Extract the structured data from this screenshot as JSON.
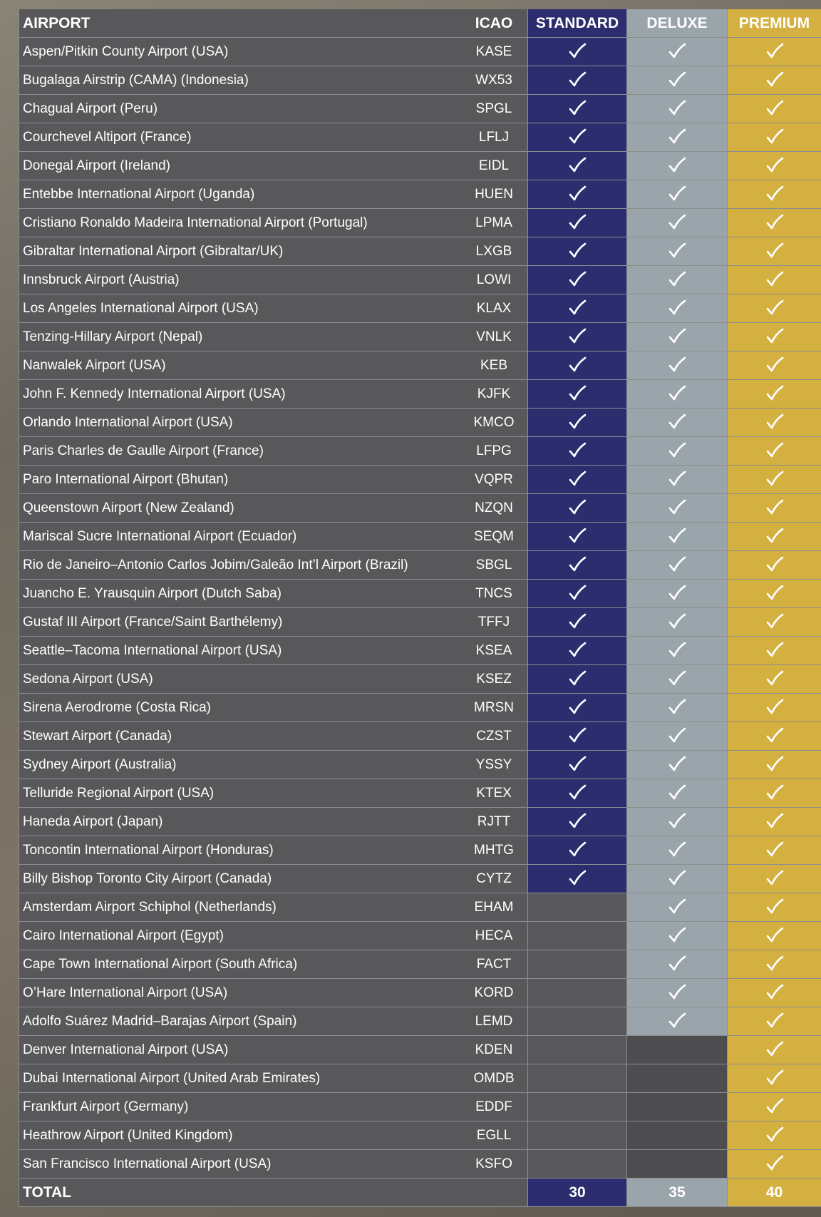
{
  "table": {
    "header": [
      "AIRPORT",
      "ICAO",
      "STANDARD",
      "DELUXE",
      "PREMIUM"
    ],
    "rows": [
      [
        "Aspen/Pitkin County Airport (USA)",
        "KASE",
        [
          true,
          true,
          true
        ]
      ],
      [
        "Bugalaga Airstrip (CAMA) (Indonesia)",
        "WX53",
        [
          true,
          true,
          true
        ]
      ],
      [
        "Chagual Airport (Peru)",
        "SPGL",
        [
          true,
          true,
          true
        ]
      ],
      [
        "Courchevel Altiport (France)",
        "LFLJ",
        [
          true,
          true,
          true
        ]
      ],
      [
        "Donegal Airport (Ireland)",
        "EIDL",
        [
          true,
          true,
          true
        ]
      ],
      [
        "Entebbe International Airport (Uganda)",
        "HUEN",
        [
          true,
          true,
          true
        ]
      ],
      [
        "Cristiano Ronaldo Madeira International Airport (Portugal)",
        "LPMA",
        [
          true,
          true,
          true
        ]
      ],
      [
        "Gibraltar International Airport (Gibraltar/UK)",
        "LXGB",
        [
          true,
          true,
          true
        ]
      ],
      [
        "Innsbruck Airport (Austria)",
        "LOWI",
        [
          true,
          true,
          true
        ]
      ],
      [
        "Los Angeles International Airport (USA)",
        "KLAX",
        [
          true,
          true,
          true
        ]
      ],
      [
        "Tenzing-Hillary Airport (Nepal)",
        "VNLK",
        [
          true,
          true,
          true
        ]
      ],
      [
        "Nanwalek Airport (USA)",
        "KEB",
        [
          true,
          true,
          true
        ]
      ],
      [
        "John F. Kennedy International Airport (USA)",
        "KJFK",
        [
          true,
          true,
          true
        ]
      ],
      [
        "Orlando International Airport (USA)",
        "KMCO",
        [
          true,
          true,
          true
        ]
      ],
      [
        "Paris Charles de Gaulle Airport (France)",
        "LFPG",
        [
          true,
          true,
          true
        ]
      ],
      [
        "Paro International Airport (Bhutan)",
        "VQPR",
        [
          true,
          true,
          true
        ]
      ],
      [
        "Queenstown Airport (New Zealand)",
        "NZQN",
        [
          true,
          true,
          true
        ]
      ],
      [
        "Mariscal Sucre International Airport (Ecuador)",
        "SEQM",
        [
          true,
          true,
          true
        ]
      ],
      [
        "Rio de Janeiro–Antonio Carlos Jobim/Galeão Int’l Airport (Brazil)",
        "SBGL",
        [
          true,
          true,
          true
        ]
      ],
      [
        "Juancho E. Yrausquin Airport (Dutch Saba)",
        "TNCS",
        [
          true,
          true,
          true
        ]
      ],
      [
        "Gustaf III Airport (France/Saint Barthélemy)",
        "TFFJ",
        [
          true,
          true,
          true
        ]
      ],
      [
        "Seattle–Tacoma International Airport (USA)",
        "KSEA",
        [
          true,
          true,
          true
        ]
      ],
      [
        "Sedona Airport (USA)",
        "KSEZ",
        [
          true,
          true,
          true
        ]
      ],
      [
        "Sirena Aerodrome (Costa Rica)",
        "MRSN",
        [
          true,
          true,
          true
        ]
      ],
      [
        "Stewart Airport (Canada)",
        "CZST",
        [
          true,
          true,
          true
        ]
      ],
      [
        "Sydney Airport (Australia)",
        "YSSY",
        [
          true,
          true,
          true
        ]
      ],
      [
        "Telluride Regional Airport (USA)",
        "KTEX",
        [
          true,
          true,
          true
        ]
      ],
      [
        "Haneda Airport (Japan)",
        "RJTT",
        [
          true,
          true,
          true
        ]
      ],
      [
        "Toncontin International Airport (Honduras)",
        "MHTG",
        [
          true,
          true,
          true
        ]
      ],
      [
        "Billy Bishop Toronto City Airport (Canada)",
        "CYTZ",
        [
          true,
          true,
          true
        ]
      ],
      [
        "Amsterdam Airport Schiphol (Netherlands)",
        "EHAM",
        [
          false,
          true,
          true
        ]
      ],
      [
        "Cairo International Airport (Egypt)",
        "HECA",
        [
          false,
          true,
          true
        ]
      ],
      [
        "Cape Town International Airport (South Africa)",
        "FACT",
        [
          false,
          true,
          true
        ]
      ],
      [
        "O’Hare International Airport (USA)",
        "KORD",
        [
          false,
          true,
          true
        ]
      ],
      [
        "Adolfo Suárez Madrid–Barajas Airport (Spain)",
        "LEMD",
        [
          false,
          true,
          true
        ]
      ],
      [
        "Denver International Airport (USA)",
        "KDEN",
        [
          false,
          false,
          true
        ]
      ],
      [
        "Dubai International Airport (United Arab Emirates)",
        "OMDB",
        [
          false,
          false,
          true
        ]
      ],
      [
        "Frankfurt Airport (Germany)",
        "EDDF",
        [
          false,
          false,
          true
        ]
      ],
      [
        "Heathrow Airport (United Kingdom)",
        "EGLL",
        [
          false,
          false,
          true
        ]
      ],
      [
        "San Francisco International Airport (USA)",
        "KSFO",
        [
          false,
          false,
          true
        ]
      ]
    ],
    "total": {
      "label": "TOTAL",
      "values": [
        30,
        35,
        40
      ]
    }
  }
}
